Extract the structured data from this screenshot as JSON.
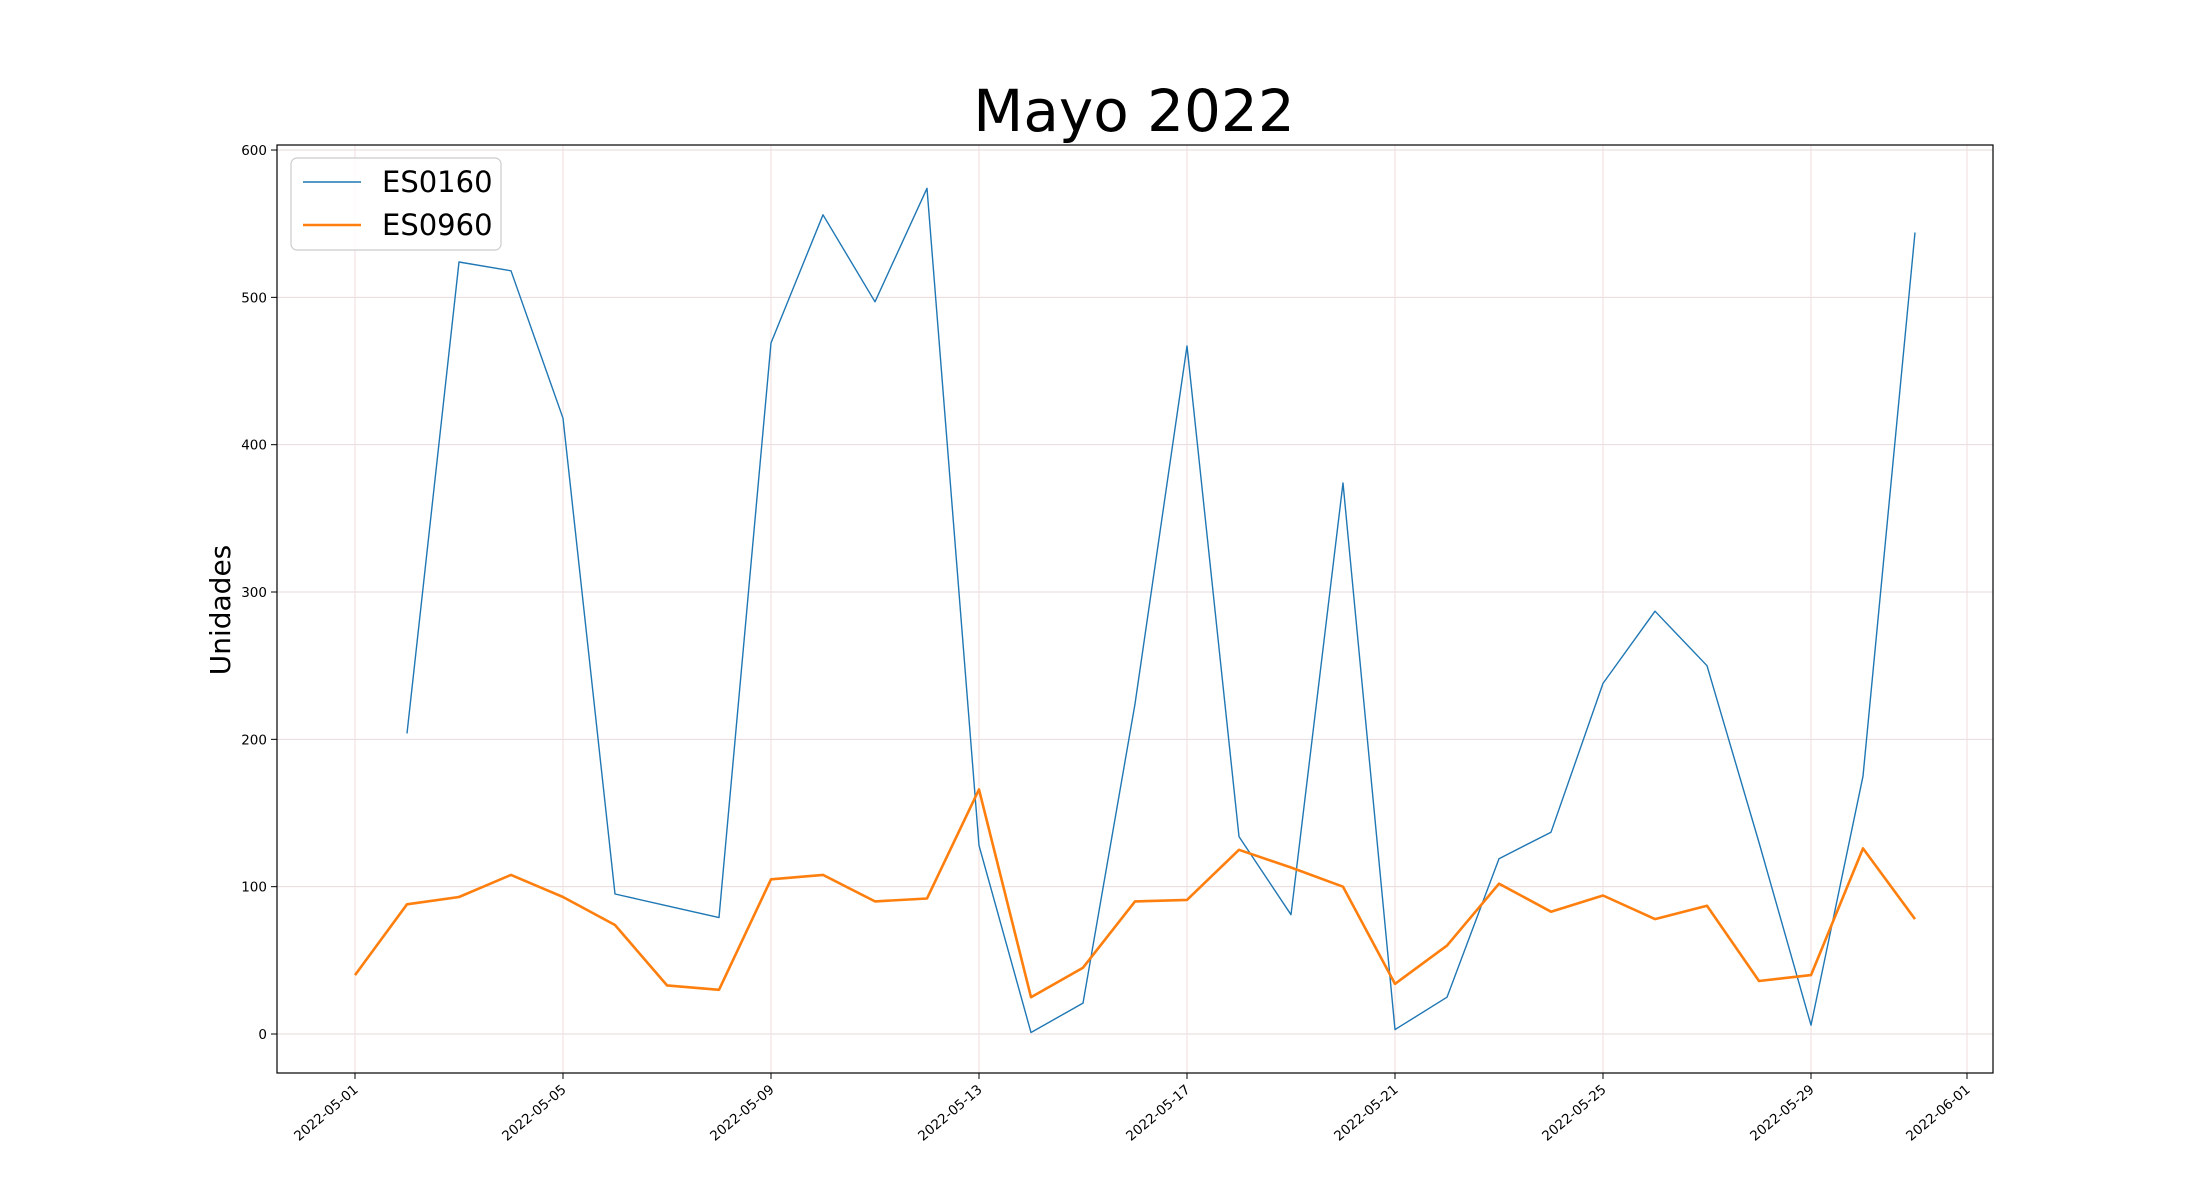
{
  "chart_data": {
    "type": "line",
    "title": "Mayo 2022",
    "xlabel": "",
    "ylabel": "Unidades",
    "xlim": [
      "2022-04-29",
      "2022-06-01"
    ],
    "ylim": [
      -28,
      600
    ],
    "grid": true,
    "legend_position": "upper-left",
    "x_ticks": [
      "2022-05-01",
      "2022-05-05",
      "2022-05-09",
      "2022-05-13",
      "2022-05-17",
      "2022-05-21",
      "2022-05-25",
      "2022-05-29",
      "2022-06-01"
    ],
    "y_ticks": [
      0,
      100,
      200,
      300,
      400,
      500,
      600
    ],
    "series": [
      {
        "name": "ES0160",
        "color": "#1f77b4",
        "points": [
          [
            "2022-05-02",
            204
          ],
          [
            "2022-05-03",
            524
          ],
          [
            "2022-05-04",
            518
          ],
          [
            "2022-05-05",
            418
          ],
          [
            "2022-05-06",
            95
          ],
          [
            "2022-05-07",
            87
          ],
          [
            "2022-05-08",
            79
          ],
          [
            "2022-05-09",
            469
          ],
          [
            "2022-05-10",
            556
          ],
          [
            "2022-05-11",
            497
          ],
          [
            "2022-05-12",
            574
          ],
          [
            "2022-05-13",
            128
          ],
          [
            "2022-05-14",
            1
          ],
          [
            "2022-05-15",
            21
          ],
          [
            "2022-05-16",
            224
          ],
          [
            "2022-05-17",
            467
          ],
          [
            "2022-05-18",
            134
          ],
          [
            "2022-05-19",
            81
          ],
          [
            "2022-05-20",
            374
          ],
          [
            "2022-05-21",
            3
          ],
          [
            "2022-05-22",
            25
          ],
          [
            "2022-05-23",
            119
          ],
          [
            "2022-05-24",
            137
          ],
          [
            "2022-05-25",
            238
          ],
          [
            "2022-05-26",
            287
          ],
          [
            "2022-05-27",
            250
          ],
          [
            "2022-05-28",
            130
          ],
          [
            "2022-05-29",
            6
          ],
          [
            "2022-05-30",
            175
          ],
          [
            "2022-05-31",
            544
          ]
        ]
      },
      {
        "name": "ES0960",
        "color": "#ff7f0e",
        "points": [
          [
            "2022-05-01",
            40
          ],
          [
            "2022-05-02",
            88
          ],
          [
            "2022-05-03",
            93
          ],
          [
            "2022-05-04",
            108
          ],
          [
            "2022-05-05",
            93
          ],
          [
            "2022-05-06",
            74
          ],
          [
            "2022-05-07",
            33
          ],
          [
            "2022-05-08",
            30
          ],
          [
            "2022-05-09",
            105
          ],
          [
            "2022-05-10",
            108
          ],
          [
            "2022-05-11",
            90
          ],
          [
            "2022-05-12",
            92
          ],
          [
            "2022-05-13",
            166
          ],
          [
            "2022-05-14",
            25
          ],
          [
            "2022-05-15",
            45
          ],
          [
            "2022-05-16",
            90
          ],
          [
            "2022-05-17",
            91
          ],
          [
            "2022-05-18",
            125
          ],
          [
            "2022-05-19",
            113
          ],
          [
            "2022-05-20",
            100
          ],
          [
            "2022-05-21",
            34
          ],
          [
            "2022-05-22",
            60
          ],
          [
            "2022-05-23",
            102
          ],
          [
            "2022-05-24",
            83
          ],
          [
            "2022-05-25",
            94
          ],
          [
            "2022-05-26",
            78
          ],
          [
            "2022-05-27",
            87
          ],
          [
            "2022-05-28",
            36
          ],
          [
            "2022-05-29",
            40
          ],
          [
            "2022-05-30",
            126
          ],
          [
            "2022-05-31",
            78
          ]
        ]
      }
    ]
  }
}
